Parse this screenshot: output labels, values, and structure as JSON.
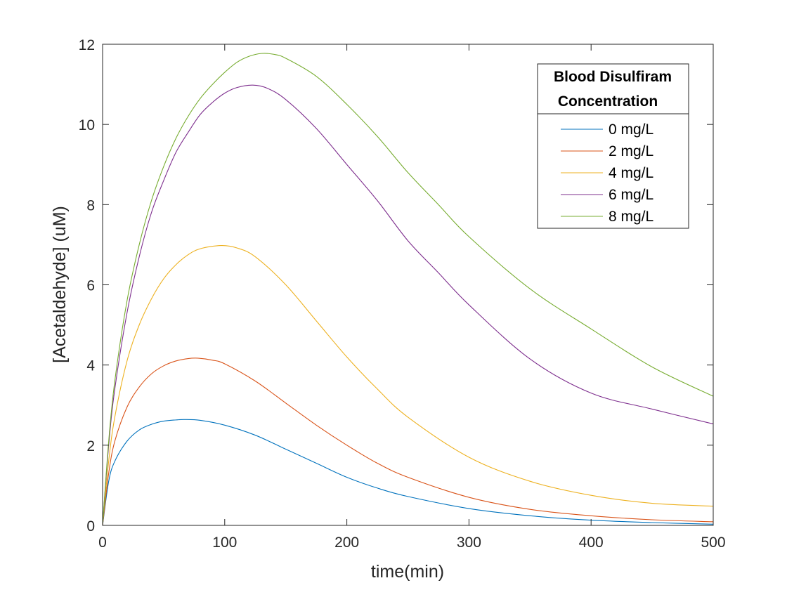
{
  "chart_data": {
    "type": "line",
    "title": "",
    "xlabel": "time(min)",
    "ylabel": "[Acetaldehyde] (uM)",
    "xlim": [
      0,
      500
    ],
    "ylim": [
      0,
      12
    ],
    "xticks": [
      0,
      100,
      200,
      300,
      400,
      500
    ],
    "yticks": [
      0,
      2,
      4,
      6,
      8,
      10,
      12
    ],
    "grid": false,
    "legend": {
      "title_lines": [
        "Blood Disulfiram",
        "Concentration"
      ],
      "placement": "top-right"
    },
    "series": [
      {
        "name": "0 mg/L",
        "color": "#0072BD",
        "x": [
          0,
          5,
          10,
          20,
          30,
          40,
          50,
          60,
          67,
          80,
          100,
          125,
          150,
          175,
          200,
          225,
          250,
          300,
          350,
          400,
          450,
          500
        ],
        "y": [
          0,
          1.1,
          1.6,
          2.1,
          2.38,
          2.52,
          2.6,
          2.63,
          2.64,
          2.62,
          2.5,
          2.25,
          1.9,
          1.55,
          1.2,
          0.93,
          0.72,
          0.42,
          0.24,
          0.13,
          0.07,
          0.03
        ]
      },
      {
        "name": "2 mg/L",
        "color": "#D95319",
        "x": [
          0,
          5,
          10,
          20,
          30,
          40,
          50,
          60,
          70,
          78,
          90,
          100,
          125,
          150,
          175,
          200,
          225,
          250,
          300,
          350,
          400,
          450,
          500
        ],
        "y": [
          0,
          1.3,
          2.1,
          2.95,
          3.45,
          3.78,
          3.98,
          4.1,
          4.16,
          4.17,
          4.12,
          4.03,
          3.6,
          3.05,
          2.5,
          2.0,
          1.55,
          1.2,
          0.7,
          0.4,
          0.24,
          0.14,
          0.09
        ]
      },
      {
        "name": "4 mg/L",
        "color": "#EDB120",
        "x": [
          0,
          5,
          10,
          20,
          30,
          40,
          50,
          60,
          70,
          80,
          97,
          110,
          125,
          150,
          175,
          200,
          225,
          250,
          300,
          350,
          400,
          450,
          500
        ],
        "y": [
          0,
          1.6,
          2.7,
          4.1,
          5.0,
          5.65,
          6.15,
          6.5,
          6.75,
          6.9,
          6.98,
          6.92,
          6.7,
          6.0,
          5.1,
          4.2,
          3.4,
          2.7,
          1.7,
          1.1,
          0.75,
          0.55,
          0.48
        ]
      },
      {
        "name": "6 mg/L",
        "color": "#7E2F8E",
        "x": [
          0,
          5,
          10,
          20,
          30,
          40,
          50,
          60,
          70,
          80,
          90,
          100,
          110,
          123,
          135,
          150,
          175,
          200,
          225,
          250,
          275,
          300,
          350,
          400,
          450,
          500
        ],
        "y": [
          0,
          2.0,
          3.4,
          5.3,
          6.7,
          7.8,
          8.6,
          9.3,
          9.8,
          10.25,
          10.55,
          10.78,
          10.92,
          10.98,
          10.9,
          10.62,
          9.9,
          9.0,
          8.1,
          7.1,
          6.3,
          5.5,
          4.15,
          3.3,
          2.9,
          2.53
        ]
      },
      {
        "name": "8 mg/L",
        "color": "#77AC30",
        "x": [
          0,
          5,
          10,
          20,
          30,
          40,
          50,
          60,
          70,
          80,
          90,
          100,
          110,
          120,
          130,
          140,
          150,
          175,
          200,
          225,
          250,
          275,
          300,
          350,
          400,
          450,
          500
        ],
        "y": [
          0,
          2.1,
          3.6,
          5.6,
          7.0,
          8.1,
          8.95,
          9.65,
          10.2,
          10.65,
          11.0,
          11.3,
          11.55,
          11.7,
          11.77,
          11.75,
          11.65,
          11.2,
          10.5,
          9.7,
          8.8,
          8.0,
          7.2,
          5.9,
          4.9,
          3.95,
          3.22
        ]
      }
    ]
  }
}
